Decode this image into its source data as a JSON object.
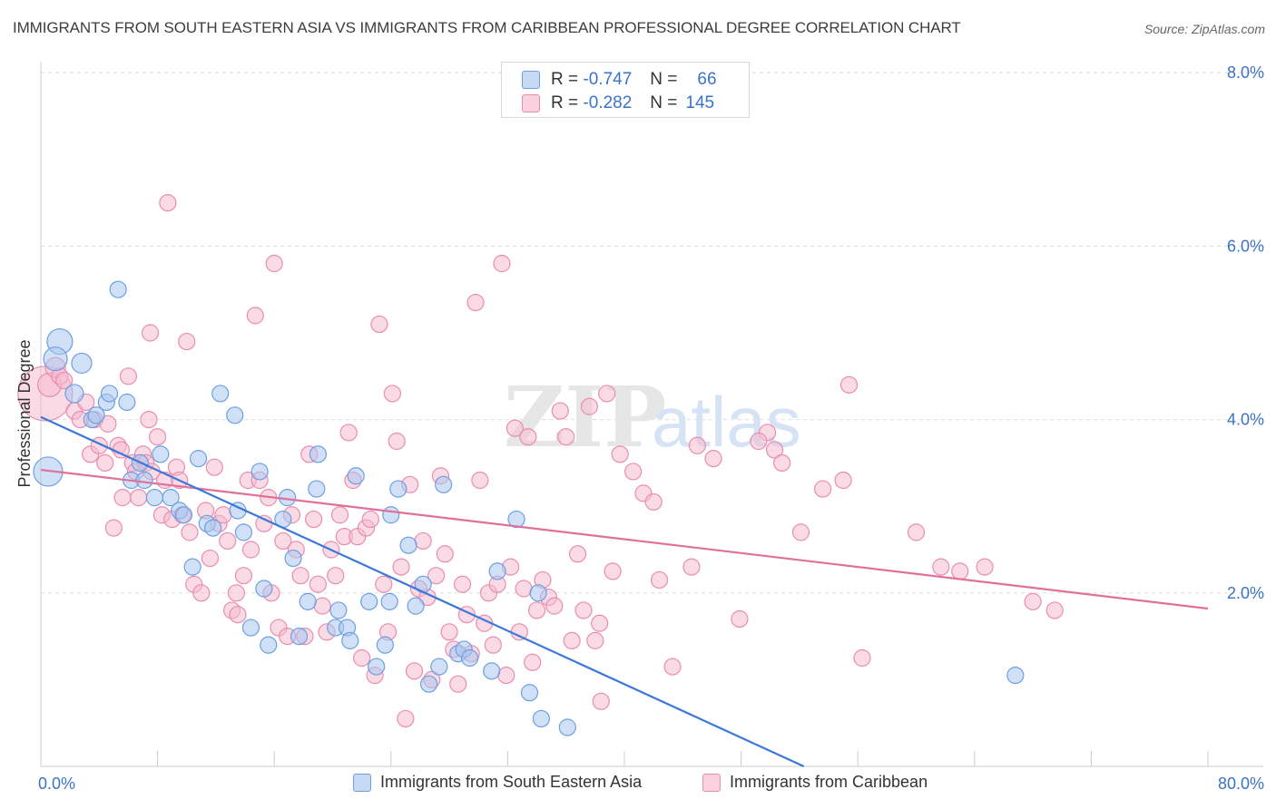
{
  "title": "IMMIGRANTS FROM SOUTH EASTERN ASIA VS IMMIGRANTS FROM CARIBBEAN PROFESSIONAL DEGREE CORRELATION CHART",
  "source": "Source: ZipAtlas.com",
  "watermark": {
    "zip": "ZIP",
    "atlas": "atlas"
  },
  "legend_box": {
    "rows": [
      {
        "r_label": "R =",
        "r_value": "-0.747",
        "n_label": "N =",
        "n_value": "66",
        "color": "#a9c8f0",
        "stroke": "#6d9fe0"
      },
      {
        "r_label": "R =",
        "r_value": "-0.282",
        "n_label": "N =",
        "n_value": "145",
        "color": "#f6bcd0",
        "stroke": "#e98db0"
      }
    ]
  },
  "colors": {
    "blue_fill": "#a9c8f0",
    "blue_stroke": "#6d9fe0",
    "blue_line": "#3b78d8",
    "pink_fill": "#f6bcd0",
    "pink_stroke": "#e98db0",
    "pink_line": "#e0709a",
    "tick_label": "#3a73c7",
    "grid": "#dddddd"
  },
  "chart_data": {
    "type": "scatter",
    "title": "IMMIGRANTS FROM SOUTH EASTERN ASIA VS IMMIGRANTS FROM CARIBBEAN PROFESSIONAL DEGREE CORRELATION CHART",
    "xlabel": "",
    "ylabel": "Professional Degree",
    "xlim": [
      0,
      80
    ],
    "ylim": [
      0,
      8
    ],
    "x_tick_labels": [
      "0.0%",
      "80.0%"
    ],
    "y_tick_labels": [
      "2.0%",
      "4.0%",
      "6.0%",
      "8.0%"
    ],
    "y_ticks": [
      2,
      4,
      6,
      8
    ],
    "grid": true,
    "legend_position": "bottom",
    "series": [
      {
        "name": "Immigrants from South Eastern Asia",
        "trend": {
          "x": [
            0,
            52.3
          ],
          "y": [
            4.03,
            0
          ]
        },
        "points": [
          [
            0.5,
            3.4
          ],
          [
            1.3,
            4.9
          ],
          [
            1.0,
            4.7
          ],
          [
            2.8,
            4.65
          ],
          [
            2.3,
            4.3
          ],
          [
            3.5,
            4.0
          ],
          [
            3.8,
            4.05
          ],
          [
            4.5,
            4.2
          ],
          [
            4.7,
            4.3
          ],
          [
            5.9,
            4.2
          ],
          [
            5.3,
            5.5
          ],
          [
            6.2,
            3.3
          ],
          [
            6.8,
            3.5
          ],
          [
            7.1,
            3.3
          ],
          [
            7.8,
            3.1
          ],
          [
            8.2,
            3.6
          ],
          [
            8.9,
            3.1
          ],
          [
            9.5,
            2.95
          ],
          [
            9.8,
            2.9
          ],
          [
            10.4,
            2.3
          ],
          [
            10.8,
            3.55
          ],
          [
            11.4,
            2.8
          ],
          [
            11.8,
            2.75
          ],
          [
            12.3,
            4.3
          ],
          [
            13.3,
            4.05
          ],
          [
            13.5,
            2.95
          ],
          [
            13.9,
            2.7
          ],
          [
            14.4,
            1.6
          ],
          [
            15.0,
            3.4
          ],
          [
            15.3,
            2.05
          ],
          [
            15.6,
            1.4
          ],
          [
            16.6,
            2.85
          ],
          [
            16.9,
            3.1
          ],
          [
            17.3,
            2.4
          ],
          [
            17.7,
            1.5
          ],
          [
            18.3,
            1.9
          ],
          [
            18.9,
            3.2
          ],
          [
            19.0,
            3.6
          ],
          [
            20.2,
            1.6
          ],
          [
            20.4,
            1.8
          ],
          [
            21.0,
            1.6
          ],
          [
            21.2,
            1.45
          ],
          [
            21.6,
            3.35
          ],
          [
            23.0,
            1.15
          ],
          [
            22.5,
            1.9
          ],
          [
            23.6,
            1.4
          ],
          [
            24.0,
            2.9
          ],
          [
            24.5,
            3.2
          ],
          [
            25.2,
            2.55
          ],
          [
            25.7,
            1.85
          ],
          [
            26.2,
            2.1
          ],
          [
            26.6,
            0.95
          ],
          [
            27.3,
            1.15
          ],
          [
            27.6,
            3.25
          ],
          [
            28.6,
            1.3
          ],
          [
            29.0,
            1.35
          ],
          [
            29.4,
            1.25
          ],
          [
            30.9,
            1.1
          ],
          [
            31.3,
            2.25
          ],
          [
            32.6,
            2.85
          ],
          [
            33.5,
            0.85
          ],
          [
            34.1,
            2.0
          ],
          [
            34.3,
            0.55
          ],
          [
            36.1,
            0.45
          ],
          [
            66.8,
            1.05
          ],
          [
            23.9,
            1.9
          ]
        ],
        "sizes": [
          16,
          14,
          13,
          11,
          10,
          9,
          9,
          9,
          9,
          9,
          9,
          9,
          9,
          9,
          9,
          9,
          9,
          9,
          9,
          9,
          9,
          9,
          9,
          9,
          9,
          9,
          9,
          9,
          9,
          9,
          9,
          9,
          9,
          9,
          9,
          9,
          9,
          9,
          9,
          9,
          9,
          9,
          9,
          9,
          9,
          9,
          9,
          9,
          9,
          9,
          9,
          9,
          9,
          9,
          9,
          9,
          9,
          9,
          9,
          9,
          9,
          9,
          9,
          9,
          9,
          9
        ]
      },
      {
        "name": "Immigrants from Caribbean",
        "trend": {
          "x": [
            0,
            80
          ],
          "y": [
            3.42,
            1.82
          ]
        },
        "points": [
          [
            0.3,
            4.3
          ],
          [
            0.6,
            4.4
          ],
          [
            1.0,
            4.6
          ],
          [
            1.3,
            4.5
          ],
          [
            1.6,
            4.45
          ],
          [
            2.3,
            4.1
          ],
          [
            2.7,
            4.0
          ],
          [
            3.1,
            4.2
          ],
          [
            3.4,
            3.6
          ],
          [
            3.7,
            4.0
          ],
          [
            4.0,
            3.7
          ],
          [
            4.4,
            3.5
          ],
          [
            4.6,
            3.95
          ],
          [
            5.0,
            2.75
          ],
          [
            5.3,
            3.7
          ],
          [
            5.5,
            3.65
          ],
          [
            5.6,
            3.1
          ],
          [
            6.0,
            4.5
          ],
          [
            6.3,
            3.5
          ],
          [
            6.5,
            3.4
          ],
          [
            6.7,
            3.1
          ],
          [
            7.0,
            3.6
          ],
          [
            7.2,
            3.5
          ],
          [
            7.4,
            4.0
          ],
          [
            7.5,
            5.0
          ],
          [
            7.6,
            3.4
          ],
          [
            8.0,
            3.8
          ],
          [
            8.3,
            2.9
          ],
          [
            8.5,
            3.3
          ],
          [
            8.7,
            6.5
          ],
          [
            9.0,
            2.85
          ],
          [
            9.3,
            3.45
          ],
          [
            9.5,
            3.3
          ],
          [
            9.7,
            2.9
          ],
          [
            10.0,
            4.9
          ],
          [
            10.2,
            2.7
          ],
          [
            10.5,
            2.1
          ],
          [
            11.0,
            2.0
          ],
          [
            11.3,
            2.95
          ],
          [
            11.6,
            2.4
          ],
          [
            11.9,
            3.45
          ],
          [
            12.2,
            2.8
          ],
          [
            12.5,
            2.9
          ],
          [
            12.8,
            2.6
          ],
          [
            13.1,
            1.8
          ],
          [
            13.4,
            2.0
          ],
          [
            13.5,
            1.75
          ],
          [
            13.9,
            2.2
          ],
          [
            14.2,
            3.3
          ],
          [
            14.4,
            2.5
          ],
          [
            14.7,
            5.2
          ],
          [
            15.0,
            3.3
          ],
          [
            15.3,
            2.8
          ],
          [
            15.6,
            3.1
          ],
          [
            15.8,
            2.0
          ],
          [
            16.0,
            5.8
          ],
          [
            16.3,
            1.6
          ],
          [
            16.6,
            2.6
          ],
          [
            16.9,
            1.5
          ],
          [
            17.2,
            2.9
          ],
          [
            17.5,
            2.5
          ],
          [
            17.8,
            2.2
          ],
          [
            18.1,
            1.5
          ],
          [
            18.4,
            3.6
          ],
          [
            18.7,
            2.85
          ],
          [
            19.0,
            2.1
          ],
          [
            19.3,
            1.85
          ],
          [
            19.6,
            1.55
          ],
          [
            19.9,
            2.5
          ],
          [
            20.2,
            2.2
          ],
          [
            20.5,
            2.9
          ],
          [
            20.8,
            2.65
          ],
          [
            21.1,
            3.85
          ],
          [
            21.4,
            3.3
          ],
          [
            21.7,
            2.65
          ],
          [
            22.0,
            1.25
          ],
          [
            22.3,
            2.75
          ],
          [
            22.6,
            2.85
          ],
          [
            22.9,
            1.05
          ],
          [
            23.2,
            5.1
          ],
          [
            23.5,
            2.1
          ],
          [
            23.8,
            1.55
          ],
          [
            24.1,
            4.3
          ],
          [
            24.4,
            3.75
          ],
          [
            24.7,
            2.3
          ],
          [
            25.0,
            0.55
          ],
          [
            25.3,
            3.25
          ],
          [
            25.6,
            1.1
          ],
          [
            25.9,
            2.05
          ],
          [
            26.2,
            2.6
          ],
          [
            26.5,
            1.95
          ],
          [
            26.8,
            1.0
          ],
          [
            27.1,
            2.2
          ],
          [
            27.4,
            3.35
          ],
          [
            27.7,
            2.45
          ],
          [
            28.0,
            1.55
          ],
          [
            28.3,
            1.35
          ],
          [
            28.6,
            0.95
          ],
          [
            28.9,
            2.1
          ],
          [
            29.2,
            1.75
          ],
          [
            29.5,
            1.3
          ],
          [
            29.8,
            5.35
          ],
          [
            30.1,
            3.3
          ],
          [
            30.4,
            1.65
          ],
          [
            30.7,
            2.0
          ],
          [
            31.0,
            1.4
          ],
          [
            31.3,
            2.1
          ],
          [
            31.6,
            5.8
          ],
          [
            31.9,
            1.05
          ],
          [
            32.2,
            2.3
          ],
          [
            32.5,
            3.9
          ],
          [
            32.8,
            1.55
          ],
          [
            33.1,
            2.05
          ],
          [
            33.4,
            3.8
          ],
          [
            33.7,
            1.2
          ],
          [
            34.0,
            1.8
          ],
          [
            34.4,
            2.15
          ],
          [
            34.8,
            1.95
          ],
          [
            35.2,
            1.85
          ],
          [
            35.6,
            4.1
          ],
          [
            36.0,
            3.8
          ],
          [
            36.4,
            1.45
          ],
          [
            36.8,
            2.45
          ],
          [
            37.2,
            1.8
          ],
          [
            37.6,
            4.15
          ],
          [
            38.0,
            1.45
          ],
          [
            38.4,
            0.75
          ],
          [
            38.8,
            4.3
          ],
          [
            39.2,
            2.25
          ],
          [
            39.7,
            3.6
          ],
          [
            40.6,
            3.4
          ],
          [
            41.3,
            3.15
          ],
          [
            42.0,
            3.05
          ],
          [
            42.4,
            2.15
          ],
          [
            43.3,
            1.15
          ],
          [
            45.0,
            3.7
          ],
          [
            46.1,
            3.55
          ],
          [
            47.9,
            1.7
          ],
          [
            49.8,
            3.85
          ],
          [
            50.3,
            3.65
          ],
          [
            52.1,
            2.7
          ],
          [
            53.6,
            3.2
          ],
          [
            55.0,
            3.3
          ],
          [
            55.4,
            4.4
          ],
          [
            56.3,
            1.25
          ],
          [
            60.0,
            2.7
          ],
          [
            61.7,
            2.3
          ],
          [
            63.0,
            2.25
          ],
          [
            64.7,
            2.3
          ],
          [
            68.0,
            1.9
          ],
          [
            69.5,
            1.8
          ],
          [
            50.8,
            3.5
          ],
          [
            49.2,
            3.75
          ],
          [
            44.6,
            2.3
          ],
          [
            38.3,
            1.65
          ]
        ],
        "sizes": [
          30,
          13,
          11,
          9,
          9,
          9,
          9,
          9,
          9,
          9,
          9,
          9,
          9,
          9,
          9,
          9,
          9,
          9,
          9,
          9,
          9,
          9,
          9,
          9,
          9,
          9,
          9,
          9,
          9,
          9,
          9,
          9,
          9,
          9,
          9,
          9,
          9,
          9,
          9,
          9,
          9,
          9,
          9,
          9,
          9,
          9,
          9,
          9,
          9,
          9,
          9,
          9,
          9,
          9,
          9,
          9,
          9,
          9,
          9,
          9,
          9,
          9,
          9,
          9,
          9,
          9,
          9,
          9,
          9,
          9,
          9,
          9,
          9,
          9,
          9,
          9,
          9,
          9,
          9,
          9,
          9,
          9,
          9,
          9,
          9,
          9,
          9,
          9,
          9,
          9,
          9,
          9,
          9,
          9,
          9,
          9,
          9,
          9,
          9,
          9,
          9,
          9,
          9,
          9,
          9,
          9,
          9,
          9,
          9,
          9,
          9,
          9,
          9,
          9,
          9,
          9,
          9,
          9,
          9,
          9,
          9,
          9,
          9,
          9,
          9,
          9,
          9,
          9,
          9,
          9,
          9,
          9,
          9,
          9,
          9,
          9,
          9,
          9,
          9,
          9,
          9,
          9,
          9,
          9,
          9
        ]
      }
    ]
  },
  "legend_bottom": [
    {
      "label": "Immigrants from South Eastern Asia",
      "color": "#a9c8f0",
      "stroke": "#6d9fe0"
    },
    {
      "label": "Immigrants from Caribbean",
      "color": "#f6bcd0",
      "stroke": "#e98db0"
    }
  ]
}
